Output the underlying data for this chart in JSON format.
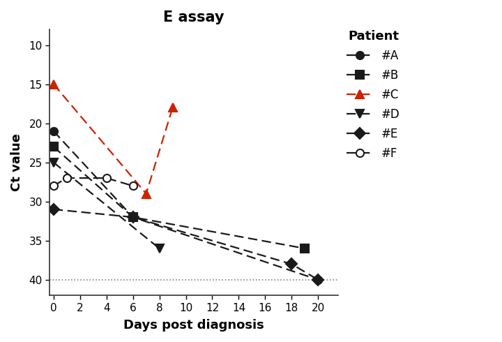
{
  "title": "E assay",
  "xlabel": "Days post diagnosis",
  "ylabel": "Ct value",
  "ylim_bottom": 42,
  "ylim_top": 8,
  "xlim": [
    -0.3,
    21.5
  ],
  "xticks": [
    0,
    2,
    4,
    6,
    8,
    10,
    12,
    14,
    16,
    18,
    20
  ],
  "yticks": [
    10,
    15,
    20,
    25,
    30,
    35,
    40
  ],
  "hline_y": 40,
  "patients": {
    "A": {
      "x": [
        0,
        6,
        20
      ],
      "y": [
        21,
        32,
        40
      ],
      "color": "#1a1a1a",
      "marker": "o",
      "label": "#A",
      "fillstyle": "full"
    },
    "B": {
      "x": [
        0,
        6,
        19
      ],
      "y": [
        23,
        32,
        36
      ],
      "color": "#1a1a1a",
      "marker": "s",
      "label": "#B",
      "fillstyle": "full"
    },
    "C": {
      "x": [
        0,
        7,
        9
      ],
      "y": [
        15,
        29,
        18
      ],
      "color": "#cc2200",
      "marker": "^",
      "label": "#C",
      "fillstyle": "full"
    },
    "D": {
      "x": [
        0,
        8
      ],
      "y": [
        25,
        36
      ],
      "color": "#1a1a1a",
      "marker": "v",
      "label": "#D",
      "fillstyle": "full"
    },
    "E": {
      "x": [
        0,
        6,
        18,
        20
      ],
      "y": [
        31,
        32,
        38,
        40
      ],
      "color": "#1a1a1a",
      "marker": "D",
      "label": "#E",
      "fillstyle": "full"
    },
    "F": {
      "x": [
        0,
        1,
        4,
        6
      ],
      "y": [
        28,
        27,
        27,
        28
      ],
      "color": "#1a1a1a",
      "marker": "o",
      "label": "#F",
      "fillstyle": "none"
    }
  },
  "background_color": "#ffffff",
  "legend_title": "Patient",
  "title_fontsize": 15,
  "axis_label_fontsize": 13,
  "tick_fontsize": 11,
  "legend_fontsize": 12,
  "legend_title_fontsize": 13
}
